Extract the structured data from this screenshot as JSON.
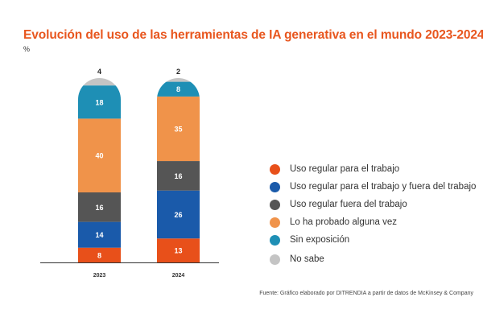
{
  "chart_data": {
    "type": "bar",
    "stacked": true,
    "title": "Evolución del uso de las herramientas de IA generativa en el mundo 2023-2024",
    "unit": "%",
    "categories": [
      "2023",
      "2024"
    ],
    "series": [
      {
        "name": "Uso regular para el trabajo",
        "color": "#e8501a",
        "values": [
          8,
          13
        ]
      },
      {
        "name": "Uso regular para el trabajo y fuera del trabajo",
        "color": "#1a5aaa",
        "values": [
          14,
          26
        ]
      },
      {
        "name": "Uso regular fuera del trabajo",
        "color": "#555555",
        "values": [
          16,
          16
        ]
      },
      {
        "name": "Lo ha probado alguna vez",
        "color": "#f0934a",
        "values": [
          40,
          35
        ]
      },
      {
        "name": "Sin exposición",
        "color": "#1e8fb5",
        "values": [
          18,
          8
        ]
      },
      {
        "name": "No sabe",
        "color": "#c4c4c4",
        "values": [
          4,
          2
        ]
      }
    ],
    "ylim": [
      0,
      100
    ],
    "grid": false,
    "legend_position": "right",
    "source": "Fuente: Gráfico elaborado por DITRENDIA a partir de datos de McKinsey & Company"
  }
}
